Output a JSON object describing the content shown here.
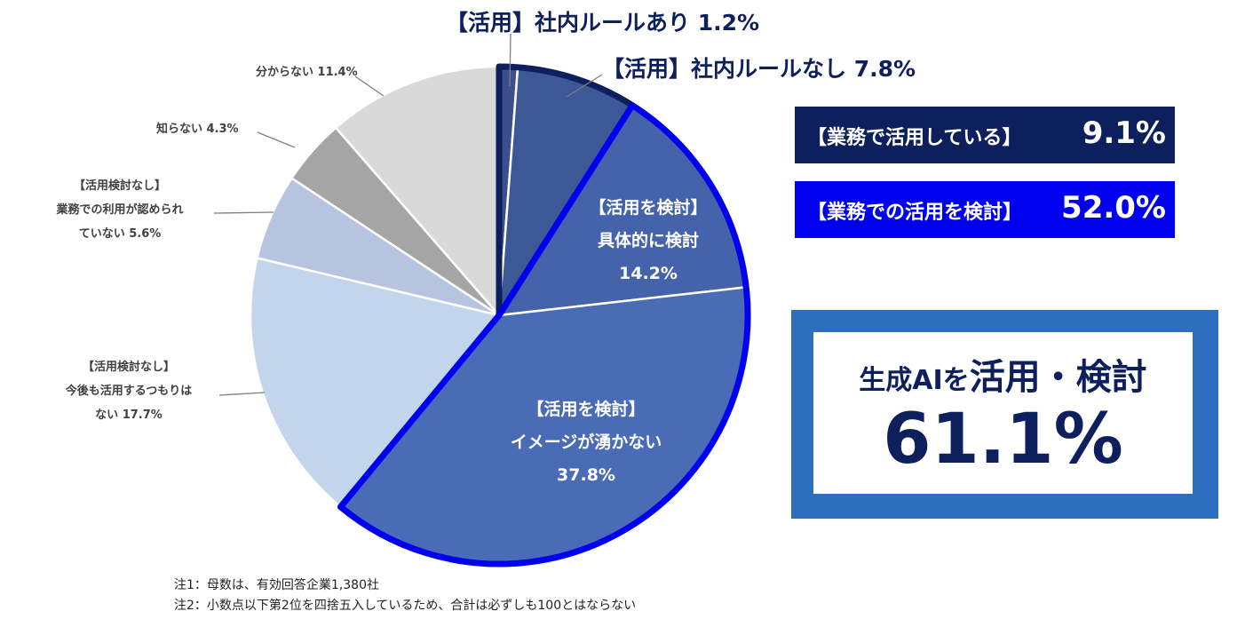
{
  "chart_data": {
    "type": "pie",
    "start": "top, clockwise",
    "slices": [
      {
        "label": "【活用】社内ルールあり",
        "value": 1.2,
        "color": "#3a4f8c",
        "group": "use"
      },
      {
        "label": "【活用】社内ルールなし",
        "value": 7.8,
        "color": "#3d5897",
        "group": "use"
      },
      {
        "label": "【活用を検討】具体的に検討",
        "value": 14.2,
        "color": "#4563aa",
        "group": "consider"
      },
      {
        "label": "【活用を検討】イメージが湧かない",
        "value": 37.8,
        "color": "#4a6bb6",
        "group": "consider"
      },
      {
        "label": "【活用検討なし】今後も活用するつもりはない",
        "value": 17.7,
        "color": "#c2d5eb",
        "group": "none"
      },
      {
        "label": "【活用検討なし】業務での利用が認められていない",
        "value": 5.6,
        "color": "#b6c4e1",
        "group": "none"
      },
      {
        "label": "知らない",
        "value": 4.3,
        "color": "#a5a5a5",
        "group": "none"
      },
      {
        "label": "分からない",
        "value": 11.4,
        "color": "#d9d9d9",
        "group": "none"
      }
    ],
    "group_outline_colors": {
      "use": "#0d1f5c",
      "consider": "#0000f0"
    }
  },
  "labels": {
    "l0": "【活用】社内ルールあり 1.2%",
    "l1": "【活用】社内ルールなし 7.8%",
    "l2": [
      "【活用を検討】",
      "具体的に検討",
      "14.2%"
    ],
    "l3": [
      "【活用を検討】",
      "イメージが湧かない",
      "37.8%"
    ],
    "l4": [
      "【活用検討なし】",
      "今後も活用するつもりは",
      "ない 17.7%"
    ],
    "l5": [
      "【活用検討なし】",
      "業務での利用が認められ",
      "ていない 5.6%"
    ],
    "l6": "知らない 4.3%",
    "l7": "分からない 11.4%"
  },
  "summary": {
    "use_label": "【業務で活用している】",
    "use_value": "9.1%",
    "consider_label": "【業務での活用を検討】",
    "consider_value": "52.0%",
    "total_title_a": "生成AIを",
    "total_title_b": "活用・検討",
    "total_value": "61.1%"
  },
  "notes": [
    "注1：母数は、有効回答企業1,380社",
    "注2：小数点以下第2位を四捨五入しているため、合計は必ずしも100とはならない"
  ]
}
